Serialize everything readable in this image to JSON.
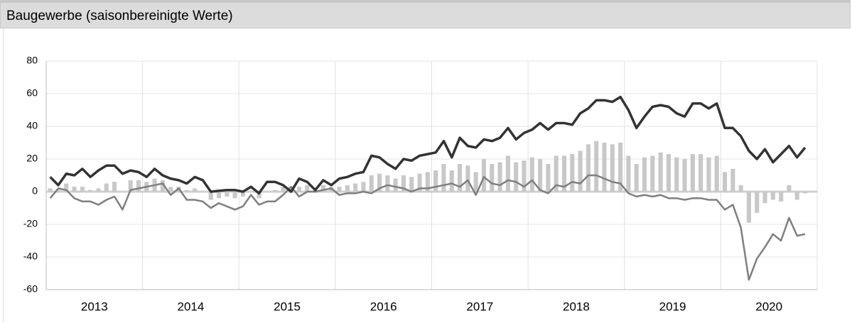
{
  "chart_data": {
    "type": "bar_line",
    "title": "Baugewerbe (saisonbereinigte Werte)",
    "years": [
      "2013",
      "2014",
      "2015",
      "2016",
      "2017",
      "2018",
      "2019",
      "2020"
    ],
    "ylim": [
      -60,
      80
    ],
    "yticks": [
      -60,
      -40,
      -20,
      0,
      20,
      40,
      60,
      80
    ],
    "grid": true,
    "series": [
      {
        "kind": "bar",
        "color": "#c8c8c8",
        "values": [
          2,
          1,
          5,
          3,
          3,
          1,
          2,
          5,
          6,
          0,
          7,
          7,
          6,
          8,
          7,
          3,
          3,
          1,
          2,
          0,
          -5,
          -4,
          -3,
          -4,
          -3,
          0,
          -4,
          0,
          1,
          3,
          2,
          3,
          4,
          1,
          4,
          3,
          3,
          4,
          5,
          6,
          10,
          11,
          10,
          8,
          10,
          9,
          11,
          12,
          13,
          17,
          13,
          17,
          16,
          12,
          20,
          17,
          18,
          22,
          18,
          19,
          21,
          20,
          17,
          22,
          22,
          23,
          25,
          29,
          31,
          30,
          29,
          30,
          22,
          17,
          21,
          22,
          24,
          23,
          21,
          20,
          23,
          23,
          21,
          22,
          12,
          14,
          4,
          -19,
          -13,
          -7,
          -5,
          -6,
          4,
          -5,
          -1
        ]
      },
      {
        "kind": "line",
        "color": "#7f7f7f",
        "values": [
          -4,
          2,
          1,
          -4,
          -6,
          -6,
          -8,
          -5,
          -3,
          -11,
          1,
          2,
          3,
          4,
          5,
          -2,
          2,
          -5,
          -5,
          -6,
          -10,
          -7,
          -9,
          -11,
          -9,
          -2,
          -8,
          -6,
          -6,
          -2,
          3,
          -3,
          0,
          0,
          1,
          2,
          -2,
          -1,
          -1,
          0,
          -1,
          2,
          4,
          3,
          2,
          0,
          2,
          2,
          3,
          4,
          5,
          3,
          7,
          -2,
          9,
          5,
          4,
          7,
          6,
          3,
          7,
          1,
          -1,
          4,
          3,
          6,
          5,
          10,
          10,
          8,
          6,
          5,
          -1,
          -3,
          -2,
          -3,
          -2,
          -4,
          -4,
          -5,
          -4,
          -4,
          -5,
          -5,
          -11,
          -8,
          -22,
          -54,
          -41,
          -34,
          -26,
          -30,
          -16,
          -27,
          -26
        ]
      },
      {
        "kind": "line",
        "color": "#333333",
        "values": [
          9,
          4,
          11,
          10,
          14,
          9,
          13,
          16,
          16,
          11,
          13,
          12,
          9,
          14,
          10,
          8,
          7,
          5,
          9,
          7,
          0,
          0.5,
          1,
          1,
          0,
          3,
          -1,
          6,
          6,
          4,
          0,
          8,
          6,
          1,
          7,
          4,
          8,
          9,
          11,
          12,
          22,
          21,
          17,
          14,
          20,
          19,
          22,
          23,
          24,
          31,
          21,
          33,
          28,
          27,
          32,
          31,
          33,
          39,
          32,
          36,
          38,
          42,
          38,
          42,
          42,
          41,
          48,
          51,
          56,
          56,
          55,
          58,
          50,
          39,
          46,
          52,
          53,
          52,
          48,
          46,
          54,
          54,
          51,
          54,
          39,
          39,
          34,
          25,
          20,
          26,
          18,
          23,
          28,
          21,
          27
        ]
      }
    ]
  }
}
